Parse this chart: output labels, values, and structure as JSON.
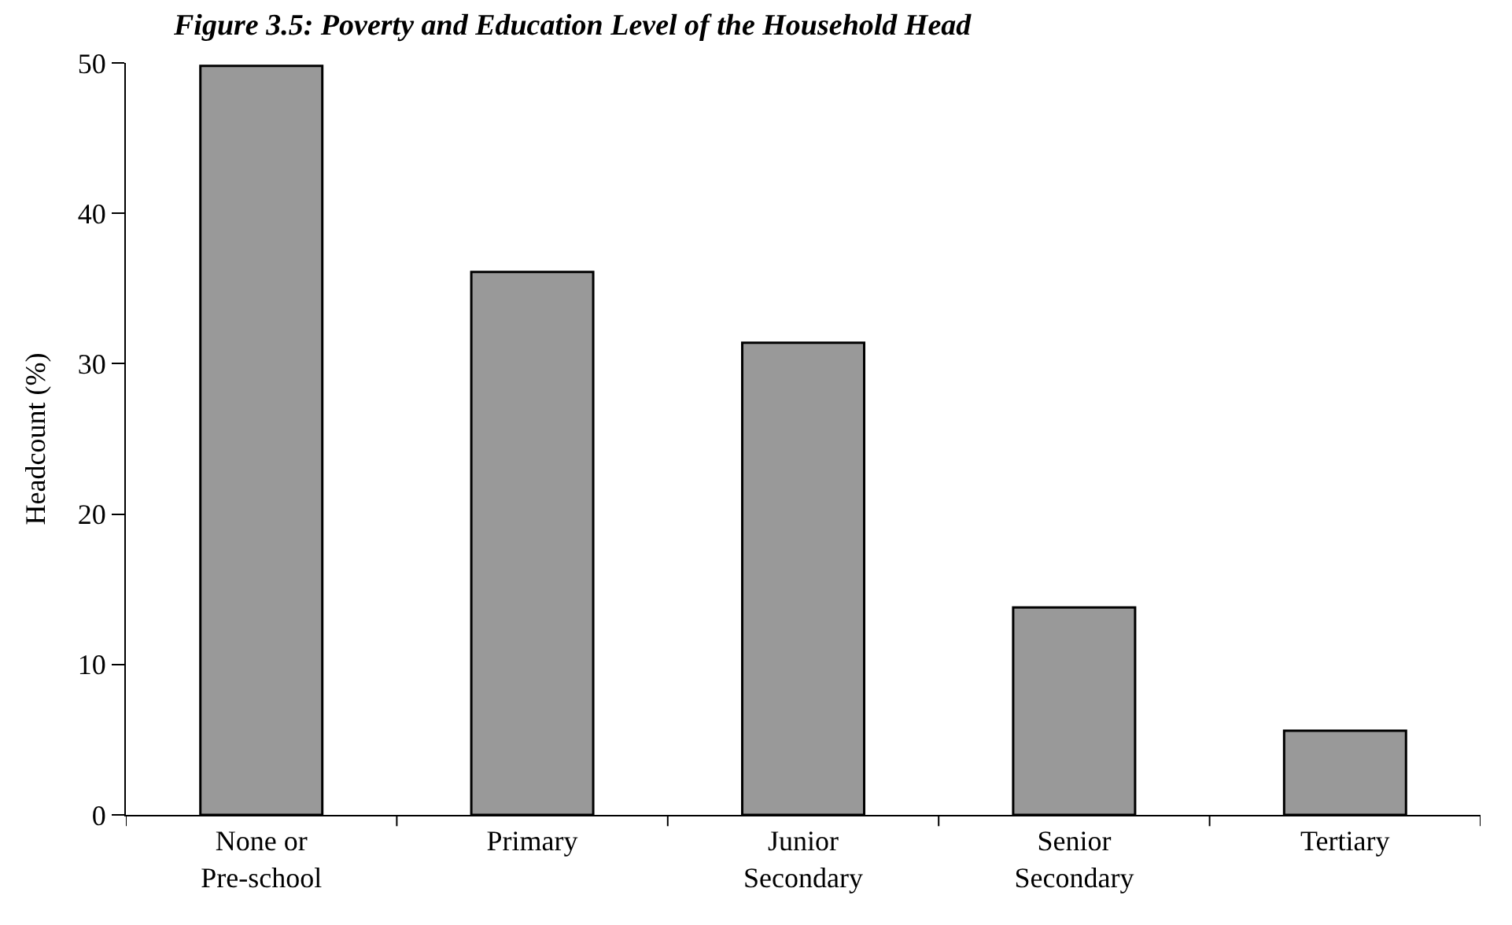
{
  "chart_data": {
    "type": "bar",
    "title": "Figure 3.5: Poverty and Education Level of the Household Head",
    "ylabel": "Headcount (%)",
    "categories": [
      "None or\nPre-school",
      "Primary",
      "Junior\nSecondary",
      "Senior\nSecondary",
      "Tertiary"
    ],
    "values": [
      49.8,
      36.1,
      31.4,
      13.8,
      5.6
    ],
    "color": "#999999",
    "ylim": [
      0,
      50
    ],
    "yticks": [
      0,
      10,
      20,
      30,
      40,
      50
    ],
    "legend": false
  }
}
